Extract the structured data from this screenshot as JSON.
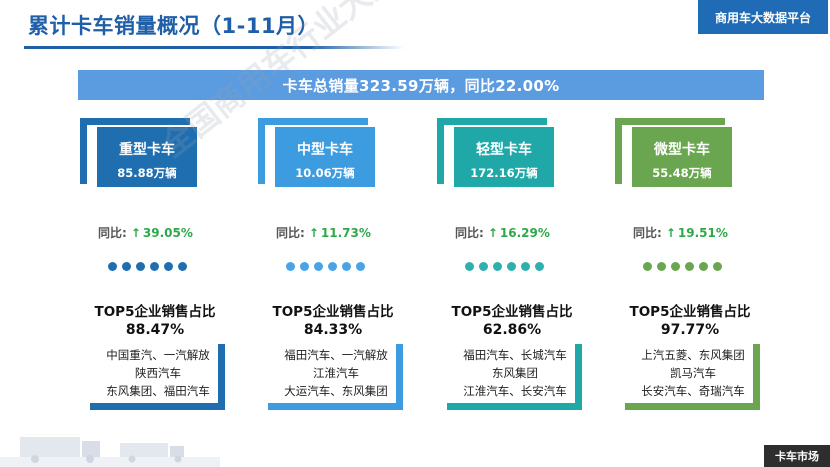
{
  "header": {
    "title": "累计卡车销量概况（1-11月）",
    "brand": "商用车大数据平台"
  },
  "banner": {
    "text": "卡车总销量323.59万辆，同比22.00%"
  },
  "watermark": "全国商用车行业大数据平台",
  "footer": {
    "tag": "卡车市场"
  },
  "colors": {
    "heavy": "#1f6fb0",
    "medium": "#3d9be0",
    "light": "#20a8a8",
    "micro": "#6aa64f",
    "up": "#2ea84a"
  },
  "categories": [
    {
      "name": "重型卡车",
      "volume": "85.88万辆",
      "yoy_label": "同比:",
      "yoy_arrow": "↑",
      "yoy_value": "39.05%",
      "top5_title": "TOP5企业销售占比",
      "top5_share": "88.47%",
      "companies": [
        "中国重汽、一汽解放",
        "陕西汽车",
        "东风集团、福田汽车"
      ]
    },
    {
      "name": "中型卡车",
      "volume": "10.06万辆",
      "yoy_label": "同比:",
      "yoy_arrow": "↑",
      "yoy_value": "11.73%",
      "top5_title": "TOP5企业销售占比",
      "top5_share": "84.33%",
      "companies": [
        "福田汽车、一汽解放",
        "江淮汽车",
        "大运汽车、东风集团"
      ]
    },
    {
      "name": "轻型卡车",
      "volume": "172.16万辆",
      "yoy_label": "同比:",
      "yoy_arrow": "↑",
      "yoy_value": "16.29%",
      "top5_title": "TOP5企业销售占比",
      "top5_share": "62.86%",
      "companies": [
        "福田汽车、长城汽车",
        "东风集团",
        "江淮汽车、长安汽车"
      ]
    },
    {
      "name": "微型卡车",
      "volume": "55.48万辆",
      "yoy_label": "同比:",
      "yoy_arrow": "↑",
      "yoy_value": "19.51%",
      "top5_title": "TOP5企业销售占比",
      "top5_share": "97.77%",
      "companies": [
        "上汽五菱、东风集团",
        "凯马汽车",
        "长安汽车、奇瑞汽车"
      ]
    }
  ]
}
